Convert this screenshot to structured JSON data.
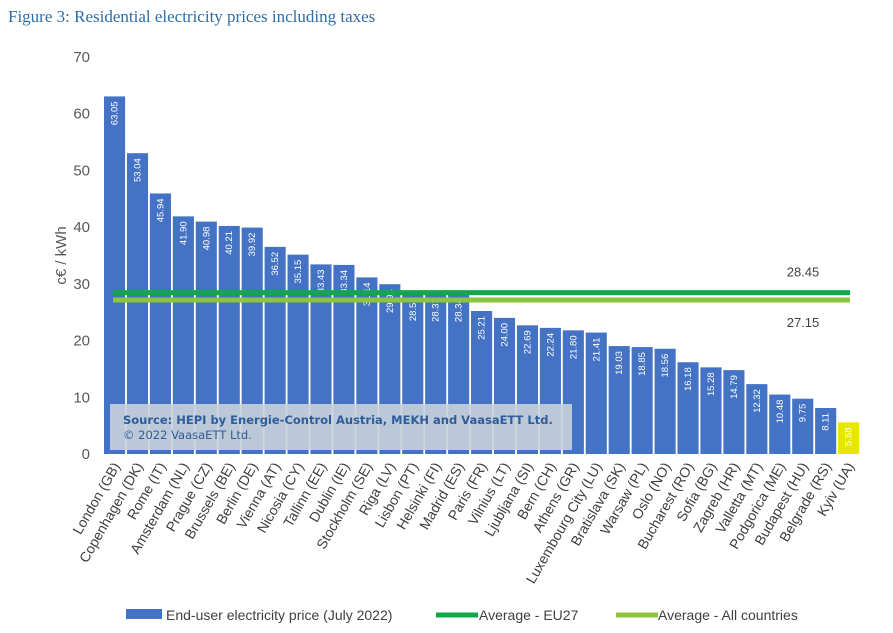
{
  "figure_title": "Figure 3: Residential electricity prices including taxes",
  "source_note": {
    "line1": "Source: HEPI by Energie-Control Austria, MEKH and VaasaETT Ltd.",
    "line2": "© 2022 VaasaETT Ltd."
  },
  "colors": {
    "bar": "#4472c4",
    "highlight_bar": "#e6e600",
    "eu27": "#12a84a",
    "all_countries": "#8cc63f",
    "text": "#404040",
    "title": "#2e6da4"
  },
  "chart_data": {
    "type": "bar",
    "categories": [
      "London (GB)",
      "Copenhagen (DK)",
      "Rome (IT)",
      "Amsterdam (NL)",
      "Prague (CZ)",
      "Brussels (BE)",
      "Berlin (DE)",
      "Vienna (AT)",
      "Nicosia (CY)",
      "Tallinn (EE)",
      "Dublin (IE)",
      "Stockholm (SE)",
      "Riga (LV)",
      "Lisbon (PT)",
      "Helsinki (FI)",
      "Madrid (ES)",
      "Paris (FR)",
      "Vilnius (LT)",
      "Ljubljana (SI)",
      "Bern (CH)",
      "Athens (GR)",
      "Luxembourg City (LU)",
      "Bratislava (SK)",
      "Warsaw (PL)",
      "Oslo (NO)",
      "Bucharest (RO)",
      "Sofia (BG)",
      "Zagreb (HR)",
      "Valletta (MT)",
      "Podgorica (ME)",
      "Budapest (HU)",
      "Belgrade (RS)",
      "Kyiv (UA)"
    ],
    "series": [
      {
        "name": "End-user electricity price (July 2022)",
        "values": [
          63.05,
          53.04,
          45.94,
          41.9,
          40.98,
          40.21,
          39.92,
          36.52,
          35.15,
          33.43,
          33.34,
          31.14,
          29.94,
          28.5,
          28.37,
          28.34,
          25.21,
          24.0,
          22.69,
          22.24,
          21.8,
          21.41,
          19.03,
          18.85,
          18.56,
          16.18,
          15.28,
          14.79,
          12.32,
          10.48,
          9.75,
          8.11,
          5.58
        ],
        "value_labels": [
          "63.05",
          "53.04",
          "45.94",
          "41.90",
          "40.98",
          "40.21",
          "39.92",
          "36.52",
          "35.15",
          "33.43",
          "33.34",
          "31.14",
          "29.94",
          "28.50",
          "28.37",
          "28.34",
          "25.21",
          "24.00",
          "22.69",
          "22.24",
          "21.80",
          "21.41",
          "19.03",
          "18.85",
          "18.56",
          "16.18",
          "15.28",
          "14.79",
          "12.32",
          "10.48",
          "9.75",
          "8.11",
          "5.58"
        ]
      }
    ],
    "reference_lines": [
      {
        "name": "Average - EU27",
        "value": 28.45,
        "label": "28.45"
      },
      {
        "name": "Average - All countries",
        "value": 27.15,
        "label": "27.15"
      }
    ],
    "highlight_category": "Kyiv (UA)",
    "ylabel": "c€ / kWh",
    "xlabel": "",
    "ylim": [
      0,
      70
    ],
    "yticks": [
      0,
      10,
      20,
      30,
      40,
      50,
      60,
      70
    ],
    "grid": false,
    "legend_position": "bottom"
  }
}
